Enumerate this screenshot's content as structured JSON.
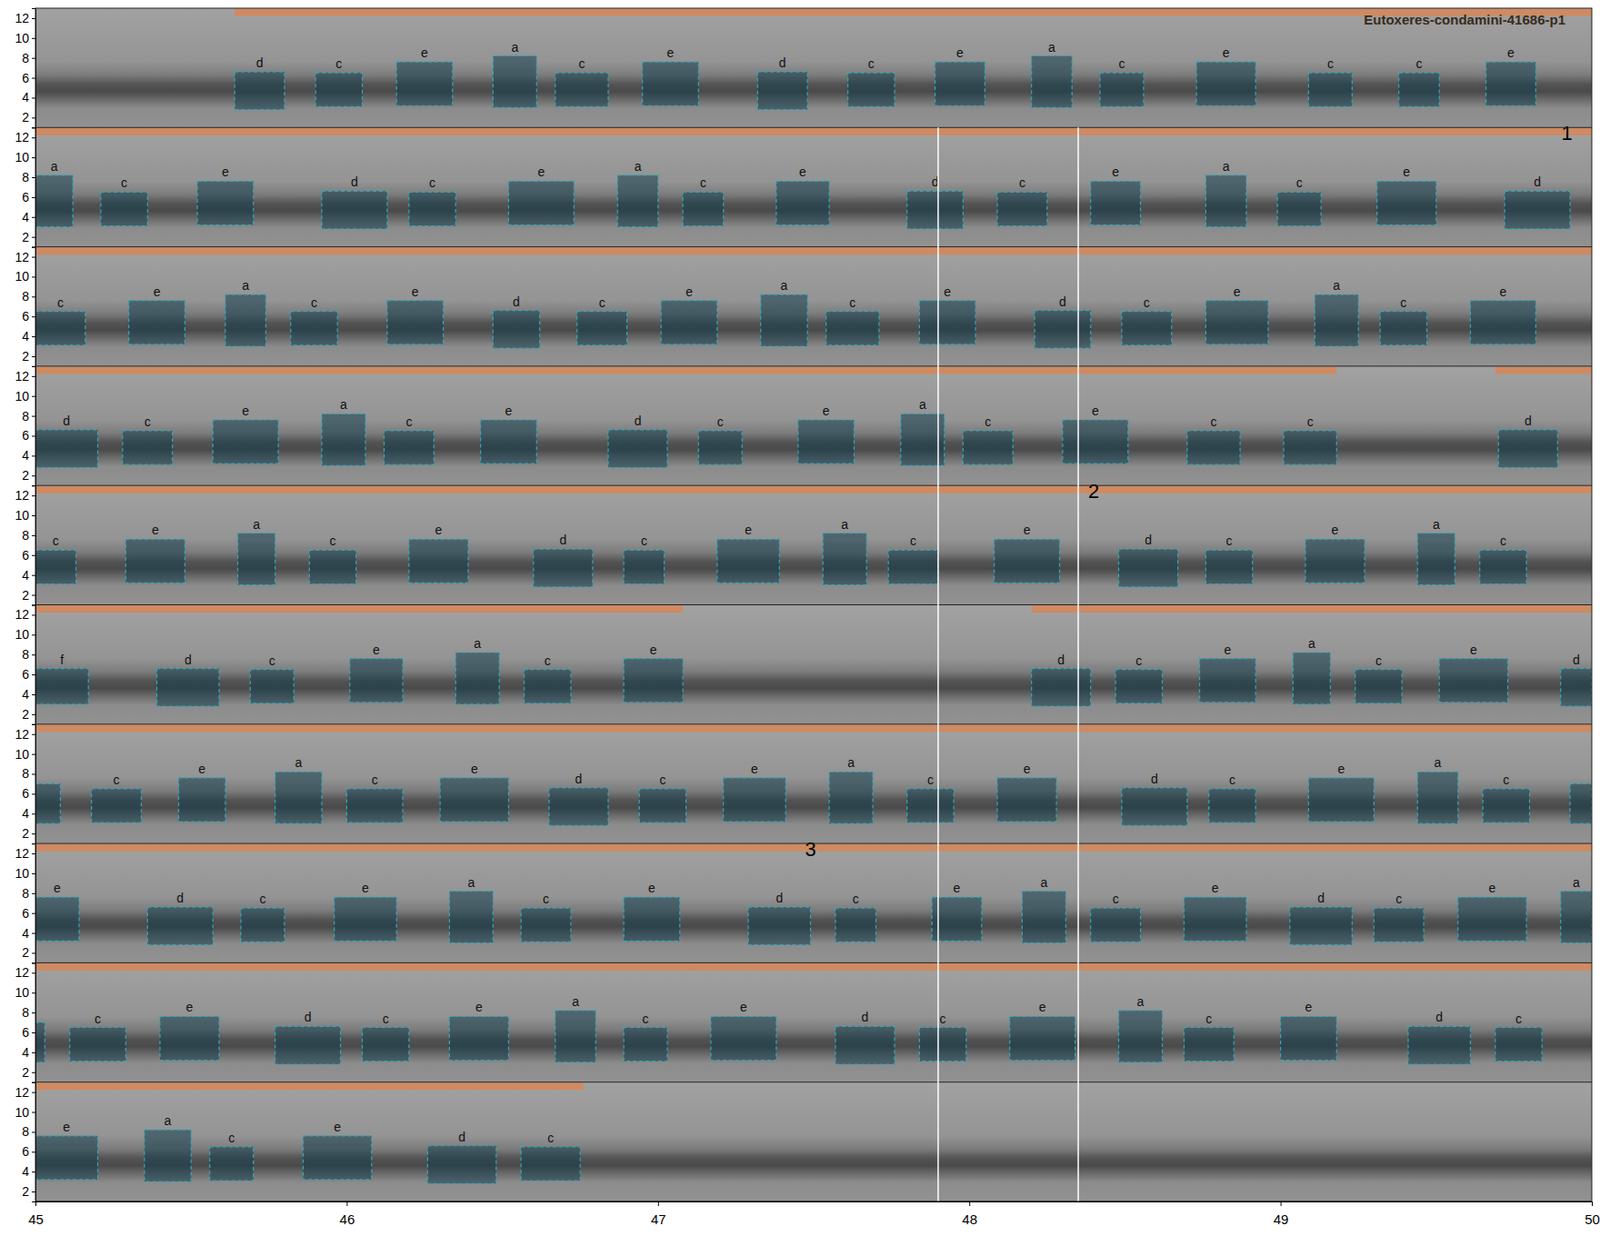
{
  "chart_data": {
    "type": "spectrogram",
    "title": "Eutoxeres-condamini-41686-p1",
    "xlim": [
      45,
      50
    ],
    "xticks": [
      45,
      46,
      47,
      48,
      49,
      50
    ],
    "ylim": [
      1,
      13
    ],
    "yticks": [
      2,
      4,
      6,
      8,
      10,
      12
    ],
    "markers": [
      47.9,
      48.35
    ],
    "annotations": [
      {
        "text": "1",
        "x": 49.92,
        "y": 12.5,
        "row": 1
      },
      {
        "text": "2",
        "x": 48.4,
        "y": 12.5,
        "row": 4
      },
      {
        "text": "3",
        "x": 47.49,
        "y": 12.5,
        "row": 7
      }
    ],
    "rows": [
      {
        "bands": [
          [
            45.64,
            50
          ]
        ],
        "boxes": [
          [
            "d",
            45.64,
            45.8,
            2.8,
            6.6
          ],
          [
            "c",
            45.9,
            46.05,
            3.1,
            6.5
          ],
          [
            "e",
            46.16,
            46.34,
            3.2,
            7.6
          ],
          [
            "a",
            46.47,
            46.61,
            3,
            8.2
          ],
          [
            "c",
            46.67,
            46.84,
            3.1,
            6.5
          ],
          [
            "e",
            46.95,
            47.13,
            3.2,
            7.6
          ],
          [
            "d",
            47.32,
            47.48,
            2.8,
            6.6
          ],
          [
            "c",
            47.61,
            47.76,
            3.1,
            6.5
          ],
          [
            "e",
            47.89,
            48.05,
            3.2,
            7.6
          ],
          [
            "a",
            48.2,
            48.33,
            3,
            8.2
          ],
          [
            "c",
            48.42,
            48.56,
            3.1,
            6.5
          ],
          [
            "e",
            48.73,
            48.92,
            3.2,
            7.6
          ],
          [
            "c",
            49.09,
            49.23,
            3.1,
            6.5
          ],
          [
            "c",
            49.38,
            49.51,
            3.1,
            6.5
          ],
          [
            "e",
            49.66,
            49.82,
            3.2,
            7.6
          ]
        ]
      },
      {
        "bands": [
          [
            45,
            50
          ]
        ],
        "boxes": [
          [
            "a",
            45.0,
            45.12,
            3,
            8.2
          ],
          [
            "c",
            45.21,
            45.36,
            3.1,
            6.5
          ],
          [
            "e",
            45.52,
            45.7,
            3.2,
            7.6
          ],
          [
            "d",
            45.92,
            46.13,
            2.8,
            6.6
          ],
          [
            "c",
            46.2,
            46.35,
            3.1,
            6.5
          ],
          [
            "e",
            46.52,
            46.73,
            3.2,
            7.6
          ],
          [
            "a",
            46.87,
            47.0,
            3,
            8.2
          ],
          [
            "c",
            47.08,
            47.21,
            3.1,
            6.5
          ],
          [
            "e",
            47.38,
            47.55,
            3.2,
            7.6
          ],
          [
            "d",
            47.8,
            47.98,
            2.8,
            6.6
          ],
          [
            "c",
            48.09,
            48.25,
            3.1,
            6.5
          ],
          [
            "e",
            48.39,
            48.55,
            3.2,
            7.6
          ],
          [
            "a",
            48.76,
            48.89,
            3,
            8.2
          ],
          [
            "c",
            48.99,
            49.13,
            3.1,
            6.5
          ],
          [
            "e",
            49.31,
            49.5,
            3.2,
            7.6
          ],
          [
            "d",
            49.72,
            49.93,
            2.8,
            6.6
          ]
        ]
      },
      {
        "bands": [
          [
            45,
            50
          ]
        ],
        "boxes": [
          [
            "c",
            45.0,
            45.16,
            3.1,
            6.5
          ],
          [
            "e",
            45.3,
            45.48,
            3.2,
            7.6
          ],
          [
            "a",
            45.61,
            45.74,
            3,
            8.2
          ],
          [
            "c",
            45.82,
            45.97,
            3.1,
            6.5
          ],
          [
            "e",
            46.13,
            46.31,
            3.2,
            7.6
          ],
          [
            "d",
            46.47,
            46.62,
            2.8,
            6.6
          ],
          [
            "c",
            46.74,
            46.9,
            3.1,
            6.5
          ],
          [
            "e",
            47.01,
            47.19,
            3.2,
            7.6
          ],
          [
            "a",
            47.33,
            47.48,
            3,
            8.2
          ],
          [
            "c",
            47.54,
            47.71,
            3.1,
            6.5
          ],
          [
            "e",
            47.84,
            48.02,
            3.2,
            7.6
          ],
          [
            "d",
            48.21,
            48.39,
            2.8,
            6.6
          ],
          [
            "c",
            48.49,
            48.65,
            3.1,
            6.5
          ],
          [
            "e",
            48.76,
            48.96,
            3.2,
            7.6
          ],
          [
            "a",
            49.11,
            49.25,
            3,
            8.2
          ],
          [
            "c",
            49.32,
            49.47,
            3.1,
            6.5
          ],
          [
            "e",
            49.61,
            49.82,
            3.2,
            7.6
          ]
        ]
      },
      {
        "bands": [
          [
            45,
            49.18
          ],
          [
            49.69,
            50
          ]
        ],
        "boxes": [
          [
            "d",
            45.0,
            45.2,
            2.8,
            6.6
          ],
          [
            "c",
            45.28,
            45.44,
            3.1,
            6.5
          ],
          [
            "e",
            45.57,
            45.78,
            3.2,
            7.6
          ],
          [
            "a",
            45.92,
            46.06,
            3,
            8.2
          ],
          [
            "c",
            46.12,
            46.28,
            3.1,
            6.5
          ],
          [
            "e",
            46.43,
            46.61,
            3.2,
            7.6
          ],
          [
            "d",
            46.84,
            47.03,
            2.8,
            6.6
          ],
          [
            "c",
            47.13,
            47.27,
            3.1,
            6.5
          ],
          [
            "e",
            47.45,
            47.63,
            3.2,
            7.6
          ],
          [
            "a",
            47.78,
            47.92,
            3,
            8.2
          ],
          [
            "c",
            47.98,
            48.14,
            3.1,
            6.5
          ],
          [
            "e",
            48.3,
            48.51,
            3.2,
            7.6
          ],
          [
            "c",
            48.7,
            48.87,
            3.1,
            6.5
          ],
          [
            "c",
            49.01,
            49.18,
            3.1,
            6.5
          ],
          [
            "d",
            49.7,
            49.89,
            2.8,
            6.6
          ]
        ]
      },
      {
        "bands": [
          [
            45,
            50
          ]
        ],
        "boxes": [
          [
            "c",
            45.0,
            45.13,
            3.1,
            6.5
          ],
          [
            "e",
            45.29,
            45.48,
            3.2,
            7.6
          ],
          [
            "a",
            45.65,
            45.77,
            3,
            8.2
          ],
          [
            "c",
            45.88,
            46.03,
            3.1,
            6.5
          ],
          [
            "e",
            46.2,
            46.39,
            3.2,
            7.6
          ],
          [
            "d",
            46.6,
            46.79,
            2.8,
            6.6
          ],
          [
            "c",
            46.89,
            47.02,
            3.1,
            6.5
          ],
          [
            "e",
            47.19,
            47.39,
            3.2,
            7.6
          ],
          [
            "a",
            47.53,
            47.67,
            3,
            8.2
          ],
          [
            "c",
            47.74,
            47.9,
            3.1,
            6.5
          ],
          [
            "e",
            48.08,
            48.29,
            3.2,
            7.6
          ],
          [
            "d",
            48.48,
            48.67,
            2.8,
            6.6
          ],
          [
            "c",
            48.76,
            48.91,
            3.1,
            6.5
          ],
          [
            "e",
            49.08,
            49.27,
            3.2,
            7.6
          ],
          [
            "a",
            49.44,
            49.56,
            3,
            8.2
          ],
          [
            "c",
            49.64,
            49.79,
            3.1,
            6.5
          ]
        ]
      },
      {
        "bands": [
          [
            45,
            47.08
          ],
          [
            48.2,
            50
          ]
        ],
        "boxes": [
          [
            "f",
            45.0,
            45.17,
            3,
            6.6
          ],
          [
            "d",
            45.39,
            45.59,
            2.8,
            6.6
          ],
          [
            "c",
            45.69,
            45.83,
            3.1,
            6.5
          ],
          [
            "e",
            46.01,
            46.18,
            3.2,
            7.6
          ],
          [
            "a",
            46.35,
            46.49,
            3,
            8.2
          ],
          [
            "c",
            46.57,
            46.72,
            3.1,
            6.5
          ],
          [
            "e",
            46.89,
            47.08,
            3.2,
            7.6
          ],
          [
            "d",
            48.2,
            48.39,
            2.8,
            6.6
          ],
          [
            "c",
            48.47,
            48.62,
            3.1,
            6.5
          ],
          [
            "e",
            48.74,
            48.92,
            3.2,
            7.6
          ],
          [
            "a",
            49.04,
            49.16,
            3,
            8.2
          ],
          [
            "c",
            49.24,
            49.39,
            3.1,
            6.5
          ],
          [
            "e",
            49.51,
            49.73,
            3.2,
            7.6
          ],
          [
            "d",
            49.9,
            50.0,
            2.8,
            6.6
          ]
        ]
      },
      {
        "bands": [
          [
            45,
            50
          ]
        ],
        "boxes": [
          [
            null,
            45.0,
            45.08,
            3,
            7
          ],
          [
            "c",
            45.18,
            45.34,
            3.1,
            6.5
          ],
          [
            "e",
            45.46,
            45.61,
            3.2,
            7.6
          ],
          [
            "a",
            45.77,
            45.92,
            3,
            8.2
          ],
          [
            "c",
            46.0,
            46.18,
            3.1,
            6.5
          ],
          [
            "e",
            46.3,
            46.52,
            3.2,
            7.6
          ],
          [
            "d",
            46.65,
            46.84,
            2.8,
            6.6
          ],
          [
            "c",
            46.94,
            47.09,
            3.1,
            6.5
          ],
          [
            "e",
            47.21,
            47.41,
            3.2,
            7.6
          ],
          [
            "a",
            47.55,
            47.69,
            3,
            8.2
          ],
          [
            "c",
            47.8,
            47.95,
            3.1,
            6.5
          ],
          [
            "e",
            48.09,
            48.28,
            3.2,
            7.6
          ],
          [
            "d",
            48.49,
            48.7,
            2.8,
            6.6
          ],
          [
            "c",
            48.77,
            48.92,
            3.1,
            6.5
          ],
          [
            "e",
            49.09,
            49.3,
            3.2,
            7.6
          ],
          [
            "a",
            49.44,
            49.57,
            3,
            8.2
          ],
          [
            "c",
            49.65,
            49.8,
            3.1,
            6.5
          ],
          [
            null,
            49.93,
            50.0,
            3,
            7
          ]
        ]
      },
      {
        "bands": [
          [
            45,
            50
          ]
        ],
        "boxes": [
          [
            "e",
            45.0,
            45.14,
            3.2,
            7.6
          ],
          [
            "d",
            45.36,
            45.57,
            2.8,
            6.6
          ],
          [
            "c",
            45.66,
            45.8,
            3.1,
            6.5
          ],
          [
            "e",
            45.96,
            46.16,
            3.2,
            7.6
          ],
          [
            "a",
            46.33,
            46.47,
            3,
            8.2
          ],
          [
            "c",
            46.56,
            46.72,
            3.1,
            6.5
          ],
          [
            "e",
            46.89,
            47.07,
            3.2,
            7.6
          ],
          [
            "d",
            47.29,
            47.49,
            2.8,
            6.6
          ],
          [
            "c",
            47.57,
            47.7,
            3.1,
            6.5
          ],
          [
            "e",
            47.88,
            48.04,
            3.2,
            7.6
          ],
          [
            "a",
            48.17,
            48.31,
            3,
            8.2
          ],
          [
            "c",
            48.39,
            48.55,
            3.1,
            6.5
          ],
          [
            "e",
            48.69,
            48.89,
            3.2,
            7.6
          ],
          [
            "d",
            49.03,
            49.23,
            2.8,
            6.6
          ],
          [
            "c",
            49.3,
            49.46,
            3.1,
            6.5
          ],
          [
            "e",
            49.57,
            49.79,
            3.2,
            7.6
          ],
          [
            "a",
            49.9,
            50.0,
            3,
            8.2
          ]
        ]
      },
      {
        "bands": [
          [
            45,
            50
          ]
        ],
        "boxes": [
          [
            null,
            45.0,
            45.03,
            3,
            7
          ],
          [
            "c",
            45.11,
            45.29,
            3.1,
            6.5
          ],
          [
            "e",
            45.4,
            45.59,
            3.2,
            7.6
          ],
          [
            "d",
            45.77,
            45.98,
            2.8,
            6.6
          ],
          [
            "c",
            46.05,
            46.2,
            3.1,
            6.5
          ],
          [
            "e",
            46.33,
            46.52,
            3.2,
            7.6
          ],
          [
            "a",
            46.67,
            46.8,
            3,
            8.2
          ],
          [
            "c",
            46.89,
            47.03,
            3.1,
            6.5
          ],
          [
            "e",
            47.17,
            47.38,
            3.2,
            7.6
          ],
          [
            "d",
            47.57,
            47.76,
            2.8,
            6.6
          ],
          [
            "c",
            47.84,
            47.99,
            3.1,
            6.5
          ],
          [
            "e",
            48.13,
            48.34,
            3.2,
            7.6
          ],
          [
            "a",
            48.48,
            48.62,
            3,
            8.2
          ],
          [
            "c",
            48.69,
            48.85,
            3.1,
            6.5
          ],
          [
            "e",
            49.0,
            49.18,
            3.2,
            7.6
          ],
          [
            "d",
            49.41,
            49.61,
            2.8,
            6.6
          ],
          [
            "c",
            49.69,
            49.84,
            3.1,
            6.5
          ]
        ]
      },
      {
        "bands": [
          [
            45,
            46.76
          ]
        ],
        "boxes": [
          [
            "e",
            45.0,
            45.2,
            3.2,
            7.6
          ],
          [
            "a",
            45.35,
            45.5,
            3,
            8.2
          ],
          [
            "c",
            45.56,
            45.7,
            3.1,
            6.5
          ],
          [
            "e",
            45.86,
            46.08,
            3.2,
            7.6
          ],
          [
            "d",
            46.26,
            46.48,
            2.8,
            6.6
          ],
          [
            "c",
            46.56,
            46.75,
            3.1,
            6.5
          ]
        ]
      }
    ]
  }
}
